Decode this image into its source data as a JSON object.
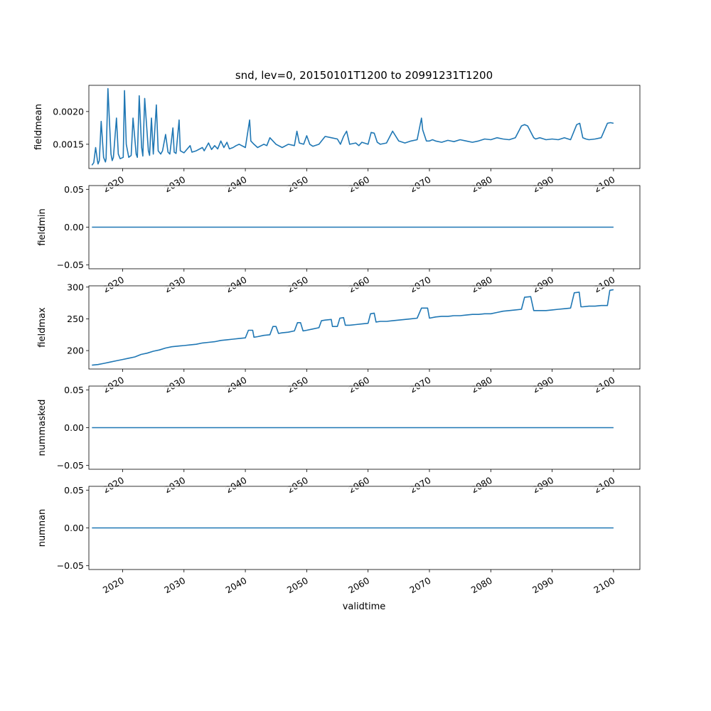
{
  "title": "snd, lev=0, 20150101T1200 to 20991231T1200",
  "xlabel": "validtime",
  "line_color": "#1f77b4",
  "x_tick_labels": [
    "2020",
    "2030",
    "2040",
    "2050",
    "2060",
    "2070",
    "2080",
    "2090",
    "2100"
  ],
  "chart_data": [
    {
      "type": "line",
      "ylabel": "fieldmean",
      "xlim": [
        2014.5,
        2104.3
      ],
      "ylim": [
        0.00113,
        0.0024
      ],
      "yticks": [
        0.0015,
        0.002
      ],
      "ytick_labels": [
        "0.0015",
        "0.0020"
      ],
      "x_ticks": [
        2020,
        2030,
        2040,
        2050,
        2060,
        2070,
        2080,
        2090,
        2100
      ],
      "x": [
        2015.0,
        2015.3,
        2015.6,
        2015.9,
        2016.0,
        2016.2,
        2016.5,
        2016.9,
        2017.2,
        2017.3,
        2017.6,
        2018.1,
        2018.3,
        2018.5,
        2019.0,
        2019.3,
        2019.6,
        2020.1,
        2020.3,
        2020.6,
        2021.0,
        2021.4,
        2021.7,
        2022.2,
        2022.4,
        2022.7,
        2023.1,
        2023.3,
        2023.6,
        2024.2,
        2024.4,
        2024.7,
        2025.0,
        2025.5,
        2025.8,
        2026.2,
        2026.5,
        2027.0,
        2027.4,
        2027.7,
        2028.2,
        2028.4,
        2028.7,
        2029.2,
        2029.4,
        2030.0,
        2031.0,
        2031.3,
        2032.0,
        2033.0,
        2033.3,
        2034.0,
        2034.5,
        2035.0,
        2035.5,
        2036.0,
        2036.5,
        2037.0,
        2037.4,
        2038.0,
        2038.5,
        2039.0,
        2040.0,
        2040.7,
        2040.9,
        2041.4,
        2042.0,
        2043.0,
        2043.5,
        2044.0,
        2045.0,
        2046.0,
        2047.0,
        2048.0,
        2048.4,
        2048.8,
        2049.5,
        2050.0,
        2050.5,
        2051.0,
        2052.0,
        2053.0,
        2054.0,
        2055.0,
        2055.5,
        2056.0,
        2056.5,
        2057.0,
        2058.0,
        2058.5,
        2059.0,
        2060.0,
        2060.5,
        2061.0,
        2061.5,
        2062.0,
        2063.0,
        2064.0,
        2065.0,
        2066.0,
        2067.0,
        2068.0,
        2068.7,
        2068.9,
        2069.5,
        2070.0,
        2070.5,
        2071.0,
        2072.0,
        2073.0,
        2074.0,
        2075.0,
        2076.0,
        2077.0,
        2078.0,
        2079.0,
        2080.0,
        2081.0,
        2082.0,
        2083.0,
        2084.0,
        2085.0,
        2085.5,
        2086.0,
        2087.0,
        2087.3,
        2088.0,
        2089.0,
        2090.0,
        2091.0,
        2092.0,
        2093.0,
        2094.0,
        2094.5,
        2095.0,
        2095.5,
        2096.0,
        2097.0,
        2098.0,
        2099.0,
        2099.5,
        2100.0
      ],
      "values": [
        0.00118,
        0.00122,
        0.00145,
        0.00125,
        0.0012,
        0.00125,
        0.00185,
        0.0013,
        0.00123,
        0.00128,
        0.00235,
        0.00135,
        0.00125,
        0.0013,
        0.0019,
        0.00135,
        0.00128,
        0.0013,
        0.00232,
        0.0015,
        0.0013,
        0.00133,
        0.0019,
        0.00135,
        0.0013,
        0.00224,
        0.00145,
        0.00132,
        0.0022,
        0.0014,
        0.00133,
        0.0019,
        0.00135,
        0.0021,
        0.0014,
        0.00135,
        0.0014,
        0.00165,
        0.00138,
        0.00135,
        0.00175,
        0.00138,
        0.00136,
        0.00187,
        0.0014,
        0.00137,
        0.00148,
        0.00138,
        0.0014,
        0.00145,
        0.0014,
        0.00152,
        0.00142,
        0.00148,
        0.00143,
        0.00155,
        0.00145,
        0.00153,
        0.00143,
        0.00145,
        0.00148,
        0.0015,
        0.00145,
        0.00187,
        0.00155,
        0.0015,
        0.00145,
        0.0015,
        0.00148,
        0.0016,
        0.0015,
        0.00145,
        0.0015,
        0.00148,
        0.0017,
        0.00152,
        0.0015,
        0.00163,
        0.0015,
        0.00147,
        0.0015,
        0.00162,
        0.0016,
        0.00158,
        0.0015,
        0.00162,
        0.0017,
        0.0015,
        0.00152,
        0.00148,
        0.00153,
        0.0015,
        0.00168,
        0.00167,
        0.00153,
        0.0015,
        0.00152,
        0.0017,
        0.00155,
        0.00152,
        0.00155,
        0.00157,
        0.0019,
        0.00172,
        0.00155,
        0.00155,
        0.00157,
        0.00155,
        0.00153,
        0.00156,
        0.00154,
        0.00157,
        0.00155,
        0.00153,
        0.00155,
        0.00158,
        0.00157,
        0.0016,
        0.00158,
        0.00157,
        0.0016,
        0.00178,
        0.0018,
        0.00178,
        0.0016,
        0.00158,
        0.0016,
        0.00157,
        0.00158,
        0.00157,
        0.0016,
        0.00157,
        0.0018,
        0.00182,
        0.0016,
        0.00158,
        0.00157,
        0.00158,
        0.0016,
        0.00182,
        0.00183,
        0.00182
      ]
    },
    {
      "type": "line",
      "ylabel": "fieldmin",
      "xlim": [
        2014.5,
        2104.3
      ],
      "ylim": [
        -0.055,
        0.055
      ],
      "yticks": [
        -0.05,
        0.0,
        0.05
      ],
      "ytick_labels": [
        "−0.05",
        "0.00",
        "0.05"
      ],
      "x_ticks": [
        2020,
        2030,
        2040,
        2050,
        2060,
        2070,
        2080,
        2090,
        2100
      ],
      "x": [
        2015.0,
        2100.0
      ],
      "values": [
        0.0,
        0.0
      ]
    },
    {
      "type": "line",
      "ylabel": "fieldmax",
      "xlim": [
        2014.5,
        2104.3
      ],
      "ylim": [
        171,
        302
      ],
      "yticks": [
        200,
        250,
        300
      ],
      "ytick_labels": [
        "200",
        "250",
        "300"
      ],
      "x_ticks": [
        2020,
        2030,
        2040,
        2050,
        2060,
        2070,
        2080,
        2090,
        2100
      ],
      "x": [
        2015.0,
        2016.0,
        2017.0,
        2018.0,
        2019.0,
        2020.0,
        2021.0,
        2022.0,
        2023.0,
        2024.0,
        2025.0,
        2026.0,
        2027.0,
        2028.0,
        2029.0,
        2030.0,
        2031.0,
        2032.0,
        2033.0,
        2034.0,
        2035.0,
        2036.0,
        2037.0,
        2038.0,
        2039.0,
        2040.0,
        2040.5,
        2041.2,
        2041.4,
        2042.0,
        2043.0,
        2044.0,
        2044.5,
        2045.0,
        2045.4,
        2046.0,
        2047.0,
        2048.0,
        2048.5,
        2049.0,
        2049.4,
        2050.0,
        2051.0,
        2052.0,
        2052.4,
        2053.0,
        2054.0,
        2054.2,
        2055.0,
        2055.4,
        2056.0,
        2056.3,
        2057.0,
        2058.0,
        2059.0,
        2060.0,
        2060.4,
        2061.0,
        2061.3,
        2062.0,
        2063.0,
        2064.0,
        2065.0,
        2066.0,
        2067.0,
        2068.0,
        2068.7,
        2069.7,
        2070.0,
        2071.0,
        2072.0,
        2073.0,
        2074.0,
        2075.0,
        2076.0,
        2077.0,
        2078.0,
        2079.0,
        2080.0,
        2081.0,
        2082.0,
        2083.0,
        2084.0,
        2085.0,
        2085.5,
        2086.5,
        2087.0,
        2088.0,
        2089.0,
        2090.0,
        2091.0,
        2092.0,
        2093.0,
        2093.6,
        2094.4,
        2094.7,
        2095.0,
        2096.0,
        2097.0,
        2098.0,
        2099.0,
        2099.4,
        2100.0
      ],
      "values": [
        177,
        178,
        180,
        182,
        184,
        186,
        188,
        190,
        194,
        196,
        199,
        201,
        204,
        206,
        207,
        208,
        209,
        210,
        212,
        213,
        214,
        216,
        217,
        218,
        219,
        220,
        232,
        232,
        221,
        222,
        224,
        225,
        238,
        238,
        227,
        228,
        229,
        231,
        244,
        244,
        231,
        232,
        234,
        236,
        247,
        248,
        249,
        238,
        238,
        251,
        252,
        240,
        240,
        241,
        242,
        243,
        258,
        259,
        245,
        246,
        246,
        247,
        248,
        249,
        250,
        251,
        267,
        267,
        251,
        253,
        254,
        254,
        255,
        255,
        256,
        257,
        257,
        258,
        258,
        260,
        262,
        263,
        264,
        265,
        284,
        285,
        263,
        263,
        263,
        264,
        265,
        266,
        267,
        291,
        292,
        269,
        269,
        270,
        270,
        271,
        271,
        295,
        296
      ]
    },
    {
      "type": "line",
      "ylabel": "nummasked",
      "xlim": [
        2014.5,
        2104.3
      ],
      "ylim": [
        -0.055,
        0.055
      ],
      "yticks": [
        -0.05,
        0.0,
        0.05
      ],
      "ytick_labels": [
        "−0.05",
        "0.00",
        "0.05"
      ],
      "x_ticks": [
        2020,
        2030,
        2040,
        2050,
        2060,
        2070,
        2080,
        2090,
        2100
      ],
      "x": [
        2015.0,
        2100.0
      ],
      "values": [
        0.0,
        0.0
      ]
    },
    {
      "type": "line",
      "ylabel": "numnan",
      "xlim": [
        2014.5,
        2104.3
      ],
      "ylim": [
        -0.055,
        0.055
      ],
      "yticks": [
        -0.05,
        0.0,
        0.05
      ],
      "ytick_labels": [
        "−0.05",
        "0.00",
        "0.05"
      ],
      "x_ticks": [
        2020,
        2030,
        2040,
        2050,
        2060,
        2070,
        2080,
        2090,
        2100
      ],
      "x": [
        2015.0,
        2100.0
      ],
      "values": [
        0.0,
        0.0
      ]
    }
  ]
}
